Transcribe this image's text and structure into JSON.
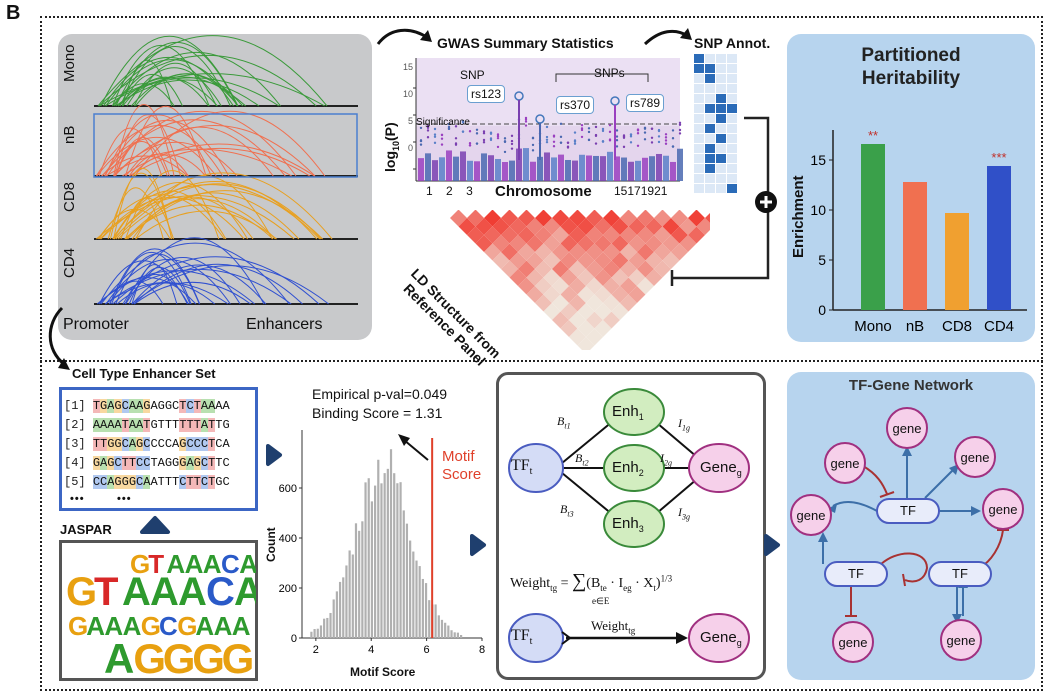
{
  "panel_label": "B",
  "top_left": {
    "cell_types": [
      "Mono",
      "nB",
      "CD8",
      "CD4"
    ],
    "colors": [
      "#3a9a3a",
      "#f07050",
      "#e8a020",
      "#3050d0"
    ],
    "promoter_label": "Promoter",
    "enhancers_label": "Enhancers"
  },
  "gwas": {
    "title": "GWAS Summary Statistics",
    "ylabel_main": "log",
    "ylabel_sub": "10",
    "ylabel_end": "(P)",
    "y_ticks": [
      "15",
      "10",
      "5",
      "0"
    ],
    "significance_label": "Significance",
    "snp_label": "SNP",
    "snps_label": "SNPs",
    "snp_ids": [
      "rs123",
      "rs370",
      "rs789"
    ],
    "xlabel": "Chromosome",
    "x_ticks_left": [
      "1",
      "2",
      "3"
    ],
    "x_ticks_right": [
      "15",
      "17",
      "19",
      "21"
    ]
  },
  "snp_annot": {
    "title": "SNP Annot."
  },
  "ld": {
    "label_line1": "LD Structure from",
    "label_line2": "Reference Panel"
  },
  "heritability": {
    "title_line1": "Partitioned",
    "title_line2": "Heritability",
    "ylabel": "Enrichment",
    "y_ticks": [
      "15",
      "10",
      "5",
      "0"
    ],
    "categories": [
      "Mono",
      "nB",
      "CD8",
      "CD4"
    ],
    "values": [
      16.6,
      12.8,
      9.7,
      14.4
    ],
    "stars": [
      "**",
      "",
      "",
      "***"
    ],
    "colors": [
      "#3aa04a",
      "#f07050",
      "#f0a030",
      "#3050c8"
    ]
  },
  "enhancer_set": {
    "title": "Cell Type Enhancer Set",
    "rows": [
      {
        "idx": "[1]",
        "seq": "TGAGCAAGAGGCTCTAAAA"
      },
      {
        "idx": "[2]",
        "seq": "AAAATAATGTTTTTTATTG"
      },
      {
        "idx": "[3]",
        "seq": "TTGGCAGCCCCAGCCCTCA"
      },
      {
        "idx": "[4]",
        "seq": "GAGCTTCCTAGGGAGCTTC"
      },
      {
        "idx": "[5]",
        "seq": "CCAGGGCAATTTCTTCTGC"
      }
    ],
    "ellipsis": "•••        •••",
    "jaspar_label": "JASPAR",
    "logo_rows": [
      "GTAAACA",
      "GTAAACA",
      "GAAAGCGAAA",
      "AGGGG"
    ]
  },
  "histogram": {
    "annotation_line1": "Empirical p-val=0.049",
    "annotation_line2": "Binding Score = 1.31",
    "motif_label_line1": "Motif",
    "motif_label_line2": "Score",
    "ylabel": "Count",
    "xlabel": "Motif Score",
    "y_ticks": [
      "0",
      "200",
      "400",
      "600"
    ],
    "x_ticks": [
      "2",
      "4",
      "6",
      "8"
    ]
  },
  "network": {
    "tf_label": "TF",
    "tf_sub": "t",
    "enh_labels": [
      "Enh",
      "Enh",
      "Enh"
    ],
    "enh_subs": [
      "1",
      "2",
      "3"
    ],
    "gene_label": "Gene",
    "gene_sub": "g",
    "b_labels": [
      "B",
      "B",
      "B"
    ],
    "b_subs": [
      "t1",
      "t2",
      "t3"
    ],
    "i_labels": [
      "I",
      "I",
      "I"
    ],
    "i_subs": [
      "1g",
      "2g",
      "3g"
    ],
    "weight_formula": "Weight",
    "weight_sub": "tg",
    "sum_sub": "e∈E",
    "formula_body": "(B",
    "weight_arrow_label": "Weight"
  },
  "tf_gene": {
    "title": "TF-Gene Network",
    "gene_label": "gene",
    "tf_label": "TF"
  }
}
